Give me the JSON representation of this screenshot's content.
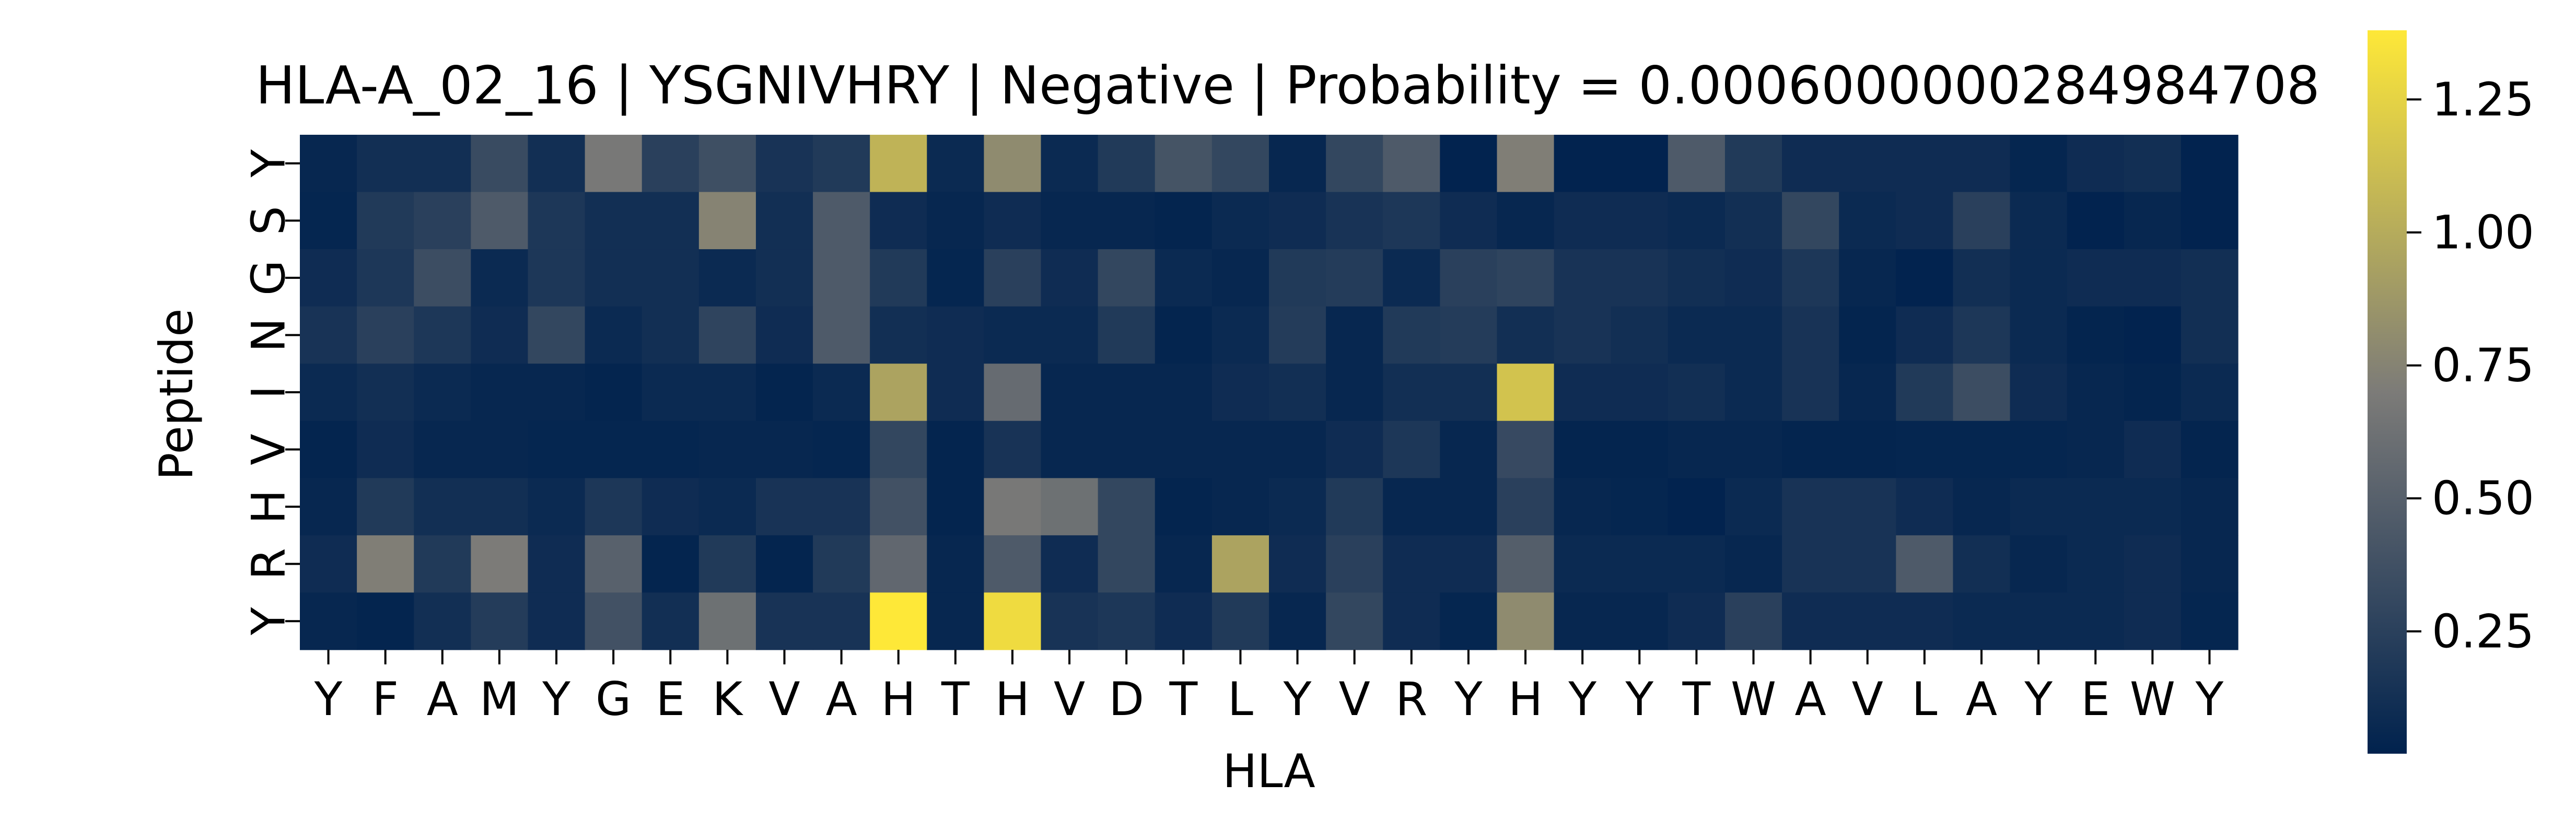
{
  "chart_data": {
    "type": "heatmap",
    "title": "HLA-A_02_16 | YSGNIVHRY | Negative | Probability = 0.0006000000284984708",
    "xlabel": "HLA",
    "ylabel": "Peptide",
    "x_tick_labels": [
      "Y",
      "F",
      "A",
      "M",
      "Y",
      "G",
      "E",
      "K",
      "V",
      "A",
      "H",
      "T",
      "H",
      "V",
      "D",
      "T",
      "L",
      "Y",
      "V",
      "R",
      "Y",
      "H",
      "Y",
      "Y",
      "T",
      "W",
      "A",
      "V",
      "L",
      "A",
      "Y",
      "E",
      "W",
      "Y"
    ],
    "y_tick_labels": [
      "Y",
      "S",
      "G",
      "N",
      "I",
      "V",
      "H",
      "R",
      "Y"
    ],
    "colorbar": {
      "colormap": "cividis",
      "vmin": 0.02,
      "vmax": 1.38,
      "ticks": [
        0.25,
        0.5,
        0.75,
        1.0,
        1.25
      ],
      "tick_labels": [
        "0.25",
        "0.50",
        "0.75",
        "1.00",
        "1.25"
      ]
    },
    "values": [
      [
        0.06,
        0.12,
        0.12,
        0.33,
        0.12,
        0.68,
        0.25,
        0.36,
        0.15,
        0.2,
        1.05,
        0.08,
        0.8,
        0.08,
        0.2,
        0.4,
        0.3,
        0.06,
        0.3,
        0.45,
        0.03,
        0.72,
        0.03,
        0.03,
        0.45,
        0.2,
        0.1,
        0.1,
        0.1,
        0.1,
        0.05,
        0.1,
        0.12,
        0.03
      ],
      [
        0.05,
        0.2,
        0.25,
        0.45,
        0.18,
        0.12,
        0.12,
        0.75,
        0.12,
        0.45,
        0.1,
        0.06,
        0.1,
        0.06,
        0.06,
        0.04,
        0.08,
        0.1,
        0.15,
        0.18,
        0.1,
        0.06,
        0.1,
        0.1,
        0.08,
        0.12,
        0.3,
        0.08,
        0.1,
        0.25,
        0.08,
        0.03,
        0.06,
        0.03
      ],
      [
        0.1,
        0.18,
        0.35,
        0.08,
        0.18,
        0.12,
        0.12,
        0.08,
        0.12,
        0.45,
        0.2,
        0.05,
        0.25,
        0.1,
        0.3,
        0.08,
        0.06,
        0.2,
        0.22,
        0.08,
        0.25,
        0.28,
        0.15,
        0.15,
        0.12,
        0.1,
        0.18,
        0.06,
        0.03,
        0.12,
        0.08,
        0.1,
        0.1,
        0.12
      ],
      [
        0.15,
        0.25,
        0.18,
        0.1,
        0.3,
        0.08,
        0.12,
        0.28,
        0.1,
        0.45,
        0.12,
        0.1,
        0.08,
        0.08,
        0.2,
        0.04,
        0.08,
        0.22,
        0.06,
        0.2,
        0.22,
        0.12,
        0.15,
        0.12,
        0.08,
        0.08,
        0.15,
        0.04,
        0.1,
        0.18,
        0.08,
        0.04,
        0.03,
        0.12
      ],
      [
        0.08,
        0.12,
        0.08,
        0.06,
        0.06,
        0.04,
        0.08,
        0.08,
        0.04,
        0.08,
        0.95,
        0.1,
        0.58,
        0.06,
        0.06,
        0.06,
        0.1,
        0.12,
        0.06,
        0.12,
        0.12,
        1.15,
        0.1,
        0.1,
        0.12,
        0.08,
        0.15,
        0.06,
        0.2,
        0.35,
        0.1,
        0.06,
        0.04,
        0.08
      ],
      [
        0.04,
        0.1,
        0.06,
        0.06,
        0.05,
        0.05,
        0.05,
        0.06,
        0.06,
        0.05,
        0.3,
        0.04,
        0.15,
        0.06,
        0.06,
        0.06,
        0.06,
        0.06,
        0.1,
        0.18,
        0.06,
        0.32,
        0.04,
        0.04,
        0.06,
        0.06,
        0.04,
        0.04,
        0.05,
        0.05,
        0.05,
        0.06,
        0.1,
        0.04
      ],
      [
        0.06,
        0.2,
        0.12,
        0.12,
        0.08,
        0.18,
        0.1,
        0.08,
        0.15,
        0.15,
        0.38,
        0.04,
        0.68,
        0.62,
        0.3,
        0.04,
        0.06,
        0.08,
        0.2,
        0.06,
        0.06,
        0.25,
        0.06,
        0.05,
        0.03,
        0.08,
        0.15,
        0.15,
        0.1,
        0.06,
        0.08,
        0.08,
        0.08,
        0.06
      ],
      [
        0.1,
        0.72,
        0.2,
        0.7,
        0.1,
        0.5,
        0.04,
        0.2,
        0.04,
        0.2,
        0.55,
        0.06,
        0.45,
        0.1,
        0.3,
        0.06,
        0.95,
        0.1,
        0.25,
        0.1,
        0.1,
        0.48,
        0.08,
        0.08,
        0.08,
        0.06,
        0.15,
        0.15,
        0.45,
        0.12,
        0.06,
        0.08,
        0.1,
        0.06
      ],
      [
        0.06,
        0.04,
        0.12,
        0.22,
        0.1,
        0.38,
        0.12,
        0.62,
        0.15,
        0.15,
        1.38,
        0.06,
        1.3,
        0.15,
        0.18,
        0.1,
        0.2,
        0.06,
        0.3,
        0.1,
        0.05,
        0.8,
        0.06,
        0.06,
        0.1,
        0.25,
        0.1,
        0.1,
        0.1,
        0.08,
        0.08,
        0.08,
        0.1,
        0.05
      ]
    ]
  }
}
